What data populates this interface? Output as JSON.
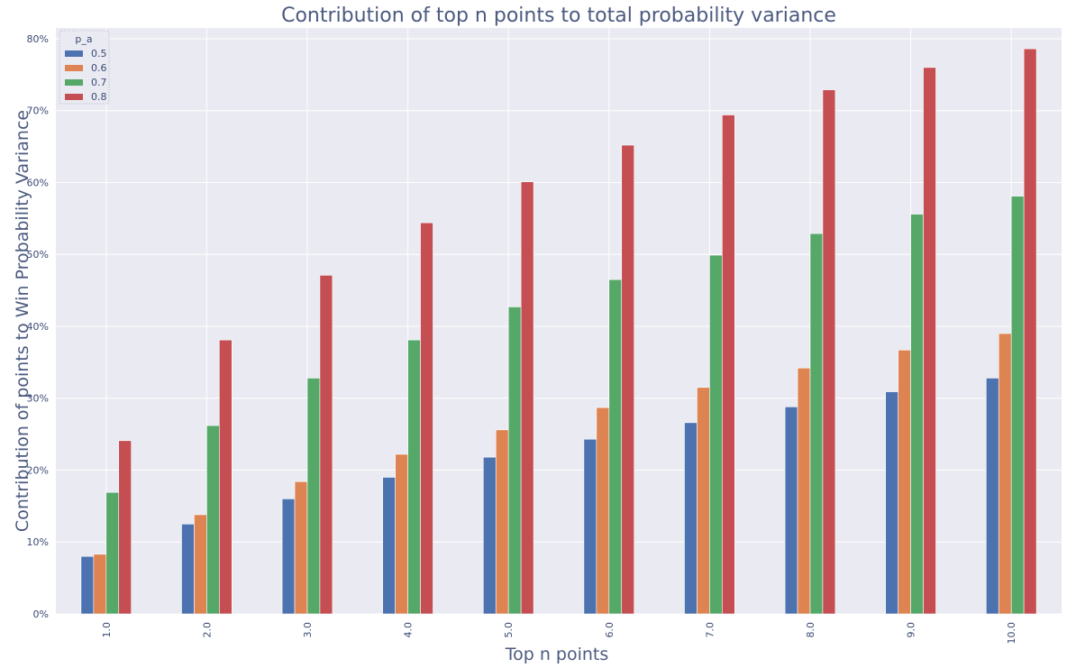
{
  "chart_data": {
    "type": "bar",
    "title": "Contribution of top n points to total probability variance",
    "xlabel": "Top n points",
    "ylabel": "Contribution of points to Win Probability Variance",
    "categories": [
      "1.0",
      "2.0",
      "3.0",
      "4.0",
      "5.0",
      "6.0",
      "7.0",
      "8.0",
      "9.0",
      "10.0"
    ],
    "yticks": [
      "0%",
      "10%",
      "20%",
      "30%",
      "40%",
      "50%",
      "60%",
      "70%",
      "80%"
    ],
    "ylim": [
      0,
      81.5
    ],
    "grid": true,
    "legend": {
      "title": "p_a",
      "placement": "top-left"
    },
    "series": [
      {
        "name": "0.5",
        "color": "#4c72b0",
        "values": [
          8.0,
          12.5,
          16.0,
          19.0,
          21.8,
          24.3,
          26.6,
          28.8,
          30.9,
          32.8
        ]
      },
      {
        "name": "0.6",
        "color": "#dd8452",
        "values": [
          8.3,
          13.8,
          18.4,
          22.2,
          25.6,
          28.7,
          31.5,
          34.2,
          36.7,
          39.0
        ]
      },
      {
        "name": "0.7",
        "color": "#55a868",
        "values": [
          16.9,
          26.2,
          32.8,
          38.1,
          42.7,
          46.5,
          49.9,
          52.9,
          55.6,
          58.1
        ]
      },
      {
        "name": "0.8",
        "color": "#c44e52",
        "values": [
          24.1,
          38.1,
          47.1,
          54.4,
          60.1,
          65.2,
          69.4,
          72.9,
          76.0,
          78.6
        ]
      }
    ]
  }
}
